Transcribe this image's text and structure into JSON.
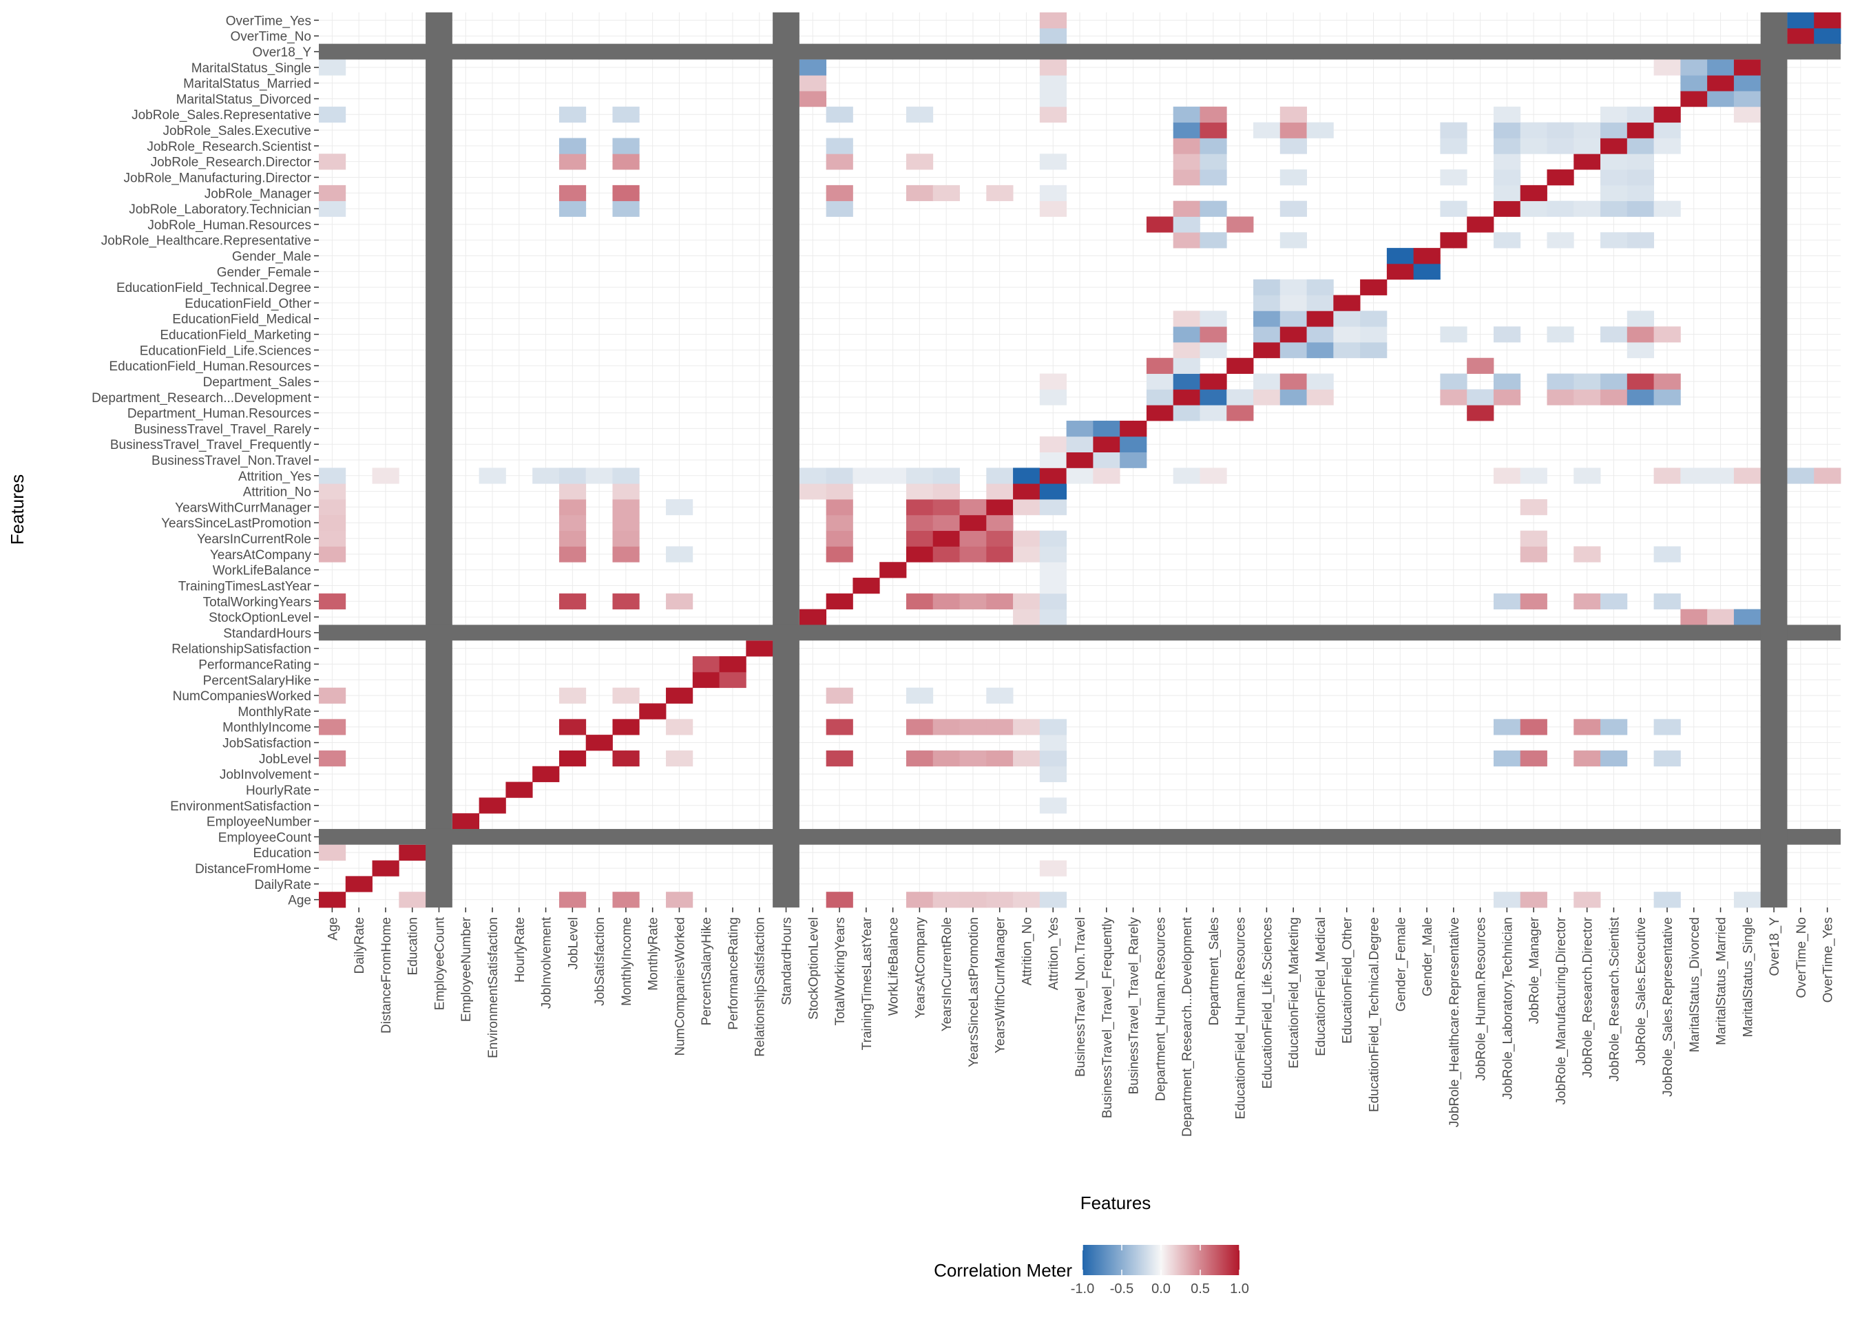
{
  "chart_data": {
    "type": "heatmap",
    "title": "",
    "xlabel": "Features",
    "ylabel": "Features",
    "legend": {
      "title": "Correlation Meter",
      "position": "bottom",
      "range": [
        -1,
        1
      ],
      "ticks": [
        "-1.0",
        "-0.5",
        "0.0",
        "0.5",
        "1.0"
      ],
      "colors": {
        "low": "#2166ac",
        "mid": "#f7f7f7",
        "high": "#b2182b"
      }
    },
    "na_color": "#6b6b6b",
    "grid": true,
    "features": [
      "Age",
      "DailyRate",
      "DistanceFromHome",
      "Education",
      "EmployeeCount",
      "EmployeeNumber",
      "EnvironmentSatisfaction",
      "HourlyRate",
      "JobInvolvement",
      "JobLevel",
      "JobSatisfaction",
      "MonthlyIncome",
      "MonthlyRate",
      "NumCompaniesWorked",
      "PercentSalaryHike",
      "PerformanceRating",
      "RelationshipSatisfaction",
      "StandardHours",
      "StockOptionLevel",
      "TotalWorkingYears",
      "TrainingTimesLastYear",
      "WorkLifeBalance",
      "YearsAtCompany",
      "YearsInCurrentRole",
      "YearsSinceLastPromotion",
      "YearsWithCurrManager",
      "Attrition_No",
      "Attrition_Yes",
      "BusinessTravel_Non.Travel",
      "BusinessTravel_Travel_Frequently",
      "BusinessTravel_Travel_Rarely",
      "Department_Human.Resources",
      "Department_Research...Development",
      "Department_Sales",
      "EducationField_Human.Resources",
      "EducationField_Life.Sciences",
      "EducationField_Marketing",
      "EducationField_Medical",
      "EducationField_Other",
      "EducationField_Technical.Degree",
      "Gender_Female",
      "Gender_Male",
      "JobRole_Healthcare.Representative",
      "JobRole_Human.Resources",
      "JobRole_Laboratory.Technician",
      "JobRole_Manager",
      "JobRole_Manufacturing.Director",
      "JobRole_Research.Director",
      "JobRole_Research.Scientist",
      "JobRole_Sales.Executive",
      "JobRole_Sales.Representative",
      "MaritalStatus_Divorced",
      "MaritalStatus_Married",
      "MaritalStatus_Single",
      "Over18_Y",
      "OverTime_No",
      "OverTime_Yes"
    ],
    "constant_features": [
      "EmployeeCount",
      "StandardHours",
      "Over18_Y"
    ],
    "correlations": [
      [
        "Age",
        "TotalWorkingYears",
        0.68
      ],
      [
        "Age",
        "JobLevel",
        0.51
      ],
      [
        "Age",
        "MonthlyIncome",
        0.5
      ],
      [
        "Age",
        "NumCompaniesWorked",
        0.3
      ],
      [
        "Age",
        "YearsAtCompany",
        0.31
      ],
      [
        "Age",
        "YearsInCurrentRole",
        0.21
      ],
      [
        "Age",
        "YearsSinceLastPromotion",
        0.22
      ],
      [
        "Age",
        "YearsWithCurrManager",
        0.2
      ],
      [
        "Age",
        "Education",
        0.21
      ],
      [
        "Age",
        "Attrition_No",
        0.16
      ],
      [
        "Age",
        "Attrition_Yes",
        -0.16
      ],
      [
        "Age",
        "MaritalStatus_Single",
        -0.12
      ],
      [
        "Age",
        "JobRole_Manager",
        0.3
      ],
      [
        "Age",
        "JobRole_Research.Director",
        0.2
      ],
      [
        "Age",
        "JobRole_Sales.Representative",
        -0.18
      ],
      [
        "Age",
        "JobRole_Laboratory.Technician",
        -0.14
      ],
      [
        "JobLevel",
        "MonthlyIncome",
        0.95
      ],
      [
        "JobLevel",
        "TotalWorkingYears",
        0.78
      ],
      [
        "MonthlyIncome",
        "TotalWorkingYears",
        0.77
      ],
      [
        "JobLevel",
        "YearsAtCompany",
        0.53
      ],
      [
        "MonthlyIncome",
        "YearsAtCompany",
        0.51
      ],
      [
        "JobLevel",
        "YearsInCurrentRole",
        0.39
      ],
      [
        "MonthlyIncome",
        "YearsInCurrentRole",
        0.36
      ],
      [
        "JobLevel",
        "YearsSinceLastPromotion",
        0.35
      ],
      [
        "MonthlyIncome",
        "YearsSinceLastPromotion",
        0.34
      ],
      [
        "JobLevel",
        "YearsWithCurrManager",
        0.38
      ],
      [
        "MonthlyIncome",
        "YearsWithCurrManager",
        0.34
      ],
      [
        "JobLevel",
        "JobRole_Manager",
        0.56
      ],
      [
        "MonthlyIncome",
        "JobRole_Manager",
        0.61
      ],
      [
        "JobLevel",
        "JobRole_Research.Director",
        0.39
      ],
      [
        "MonthlyIncome",
        "JobRole_Research.Director",
        0.44
      ],
      [
        "JobLevel",
        "JobRole_Research.Scientist",
        -0.37
      ],
      [
        "MonthlyIncome",
        "JobRole_Research.Scientist",
        -0.33
      ],
      [
        "JobLevel",
        "JobRole_Laboratory.Technician",
        -0.34
      ],
      [
        "MonthlyIncome",
        "JobRole_Laboratory.Technician",
        -0.32
      ],
      [
        "JobLevel",
        "JobRole_Sales.Representative",
        -0.2
      ],
      [
        "MonthlyIncome",
        "JobRole_Sales.Representative",
        -0.2
      ],
      [
        "JobLevel",
        "Attrition_No",
        0.17
      ],
      [
        "JobLevel",
        "Attrition_Yes",
        -0.17
      ],
      [
        "MonthlyIncome",
        "Attrition_No",
        0.16
      ],
      [
        "MonthlyIncome",
        "Attrition_Yes",
        -0.16
      ],
      [
        "JobLevel",
        "NumCompaniesWorked",
        0.14
      ],
      [
        "MonthlyIncome",
        "NumCompaniesWorked",
        0.15
      ],
      [
        "PercentSalaryHike",
        "PerformanceRating",
        0.77
      ],
      [
        "TotalWorkingYears",
        "YearsAtCompany",
        0.63
      ],
      [
        "TotalWorkingYears",
        "YearsInCurrentRole",
        0.46
      ],
      [
        "TotalWorkingYears",
        "YearsSinceLastPromotion",
        0.4
      ],
      [
        "TotalWorkingYears",
        "YearsWithCurrManager",
        0.46
      ],
      [
        "TotalWorkingYears",
        "NumCompaniesWorked",
        0.24
      ],
      [
        "TotalWorkingYears",
        "Attrition_No",
        0.17
      ],
      [
        "TotalWorkingYears",
        "Attrition_Yes",
        -0.17
      ],
      [
        "TotalWorkingYears",
        "JobRole_Manager",
        0.46
      ],
      [
        "TotalWorkingYears",
        "JobRole_Research.Director",
        0.33
      ],
      [
        "TotalWorkingYears",
        "JobRole_Laboratory.Technician",
        -0.24
      ],
      [
        "TotalWorkingYears",
        "JobRole_Research.Scientist",
        -0.22
      ],
      [
        "TotalWorkingYears",
        "JobRole_Sales.Representative",
        -0.2
      ],
      [
        "YearsAtCompany",
        "YearsInCurrentRole",
        0.76
      ],
      [
        "YearsAtCompany",
        "YearsSinceLastPromotion",
        0.62
      ],
      [
        "YearsAtCompany",
        "YearsWithCurrManager",
        0.77
      ],
      [
        "YearsInCurrentRole",
        "YearsSinceLastPromotion",
        0.55
      ],
      [
        "YearsInCurrentRole",
        "YearsWithCurrManager",
        0.71
      ],
      [
        "YearsSinceLastPromotion",
        "YearsWithCurrManager",
        0.51
      ],
      [
        "YearsAtCompany",
        "Attrition_No",
        0.13
      ],
      [
        "YearsAtCompany",
        "Attrition_Yes",
        -0.13
      ],
      [
        "YearsInCurrentRole",
        "Attrition_No",
        0.16
      ],
      [
        "YearsInCurrentRole",
        "Attrition_Yes",
        -0.16
      ],
      [
        "YearsWithCurrManager",
        "Attrition_No",
        0.16
      ],
      [
        "YearsWithCurrManager",
        "Attrition_Yes",
        -0.16
      ],
      [
        "YearsAtCompany",
        "JobRole_Manager",
        0.27
      ],
      [
        "YearsAtCompany",
        "JobRole_Research.Director",
        0.18
      ],
      [
        "YearsAtCompany",
        "JobRole_Sales.Representative",
        -0.14
      ],
      [
        "YearsInCurrentRole",
        "JobRole_Manager",
        0.17
      ],
      [
        "YearsWithCurrManager",
        "JobRole_Manager",
        0.16
      ],
      [
        "YearsAtCompany",
        "NumCompaniesWorked",
        -0.12
      ],
      [
        "YearsWithCurrManager",
        "NumCompaniesWorked",
        -0.11
      ],
      [
        "StockOptionLevel",
        "MaritalStatus_Single",
        -0.64
      ],
      [
        "StockOptionLevel",
        "MaritalStatus_Divorced",
        0.43
      ],
      [
        "StockOptionLevel",
        "MaritalStatus_Married",
        0.2
      ],
      [
        "StockOptionLevel",
        "Attrition_No",
        0.14
      ],
      [
        "StockOptionLevel",
        "Attrition_Yes",
        -0.14
      ],
      [
        "Attrition_No",
        "Attrition_Yes",
        -1
      ],
      [
        "Attrition_Yes",
        "OverTime_Yes",
        0.25
      ],
      [
        "Attrition_Yes",
        "OverTime_No",
        -0.25
      ],
      [
        "Attrition_Yes",
        "MaritalStatus_Single",
        0.18
      ],
      [
        "Attrition_Yes",
        "MaritalStatus_Married",
        -0.09
      ],
      [
        "Attrition_Yes",
        "MaritalStatus_Divorced",
        -0.09
      ],
      [
        "Attrition_Yes",
        "BusinessTravel_Travel_Frequently",
        0.12
      ],
      [
        "Attrition_Yes",
        "BusinessTravel_Non.Travel",
        -0.07
      ],
      [
        "Attrition_Yes",
        "JobInvolvement",
        -0.13
      ],
      [
        "Attrition_Yes",
        "EnvironmentSatisfaction",
        -0.1
      ],
      [
        "Attrition_Yes",
        "JobSatisfaction",
        -0.1
      ],
      [
        "Attrition_Yes",
        "JobRole_Sales.Representative",
        0.16
      ],
      [
        "Attrition_Yes",
        "JobRole_Laboratory.Technician",
        0.1
      ],
      [
        "Attrition_Yes",
        "JobRole_Research.Director",
        -0.09
      ],
      [
        "Attrition_Yes",
        "JobRole_Manager",
        -0.08
      ],
      [
        "Attrition_Yes",
        "Department_Research...Development",
        -0.09
      ],
      [
        "Attrition_Yes",
        "Department_Sales",
        0.08
      ],
      [
        "Attrition_Yes",
        "DistanceFromHome",
        0.08
      ],
      [
        "Attrition_Yes",
        "WorkLifeBalance",
        -0.06
      ],
      [
        "Attrition_Yes",
        "TrainingTimesLastYear",
        -0.06
      ],
      [
        "BusinessTravel_Non.Travel",
        "BusinessTravel_Travel_Rarely",
        -0.53
      ],
      [
        "BusinessTravel_Travel_Frequently",
        "BusinessTravel_Travel_Rarely",
        -0.76
      ],
      [
        "BusinessTravel_Non.Travel",
        "BusinessTravel_Travel_Frequently",
        -0.17
      ],
      [
        "Department_Human.Resources",
        "Department_Research...Development",
        -0.21
      ],
      [
        "Department_Human.Resources",
        "Department_Sales",
        -0.11
      ],
      [
        "Department_Research...Development",
        "Department_Sales",
        -0.91
      ],
      [
        "Department_Human.Resources",
        "EducationField_Human.Resources",
        0.63
      ],
      [
        "Department_Human.Resources",
        "JobRole_Human.Resources",
        0.9
      ],
      [
        "Department_Research...Development",
        "JobRole_Sales.Executive",
        -0.71
      ],
      [
        "Department_Sales",
        "JobRole_Sales.Executive",
        0.8
      ],
      [
        "Department_Research...Development",
        "JobRole_Sales.Representative",
        -0.4
      ],
      [
        "Department_Sales",
        "JobRole_Sales.Representative",
        0.46
      ],
      [
        "Department_Research...Development",
        "JobRole_Research.Scientist",
        0.36
      ],
      [
        "Department_Sales",
        "JobRole_Research.Scientist",
        -0.33
      ],
      [
        "Department_Research...Development",
        "JobRole_Laboratory.Technician",
        0.35
      ],
      [
        "Department_Sales",
        "JobRole_Laboratory.Technician",
        -0.33
      ],
      [
        "Department_Research...Development",
        "JobRole_Healthcare.Representative",
        0.29
      ],
      [
        "Department_Sales",
        "JobRole_Healthcare.Representative",
        -0.25
      ],
      [
        "Department_Research...Development",
        "JobRole_Manufacturing.Director",
        0.3
      ],
      [
        "Department_Sales",
        "JobRole_Manufacturing.Director",
        -0.26
      ],
      [
        "Department_Research...Development",
        "JobRole_Research.Director",
        0.25
      ],
      [
        "Department_Sales",
        "JobRole_Research.Director",
        -0.21
      ],
      [
        "Department_Sales",
        "JobRole_Manager",
        0.02
      ],
      [
        "Department_Research...Development",
        "JobRole_Human.Resources",
        -0.19
      ],
      [
        "Department_Research...Development",
        "EducationField_Marketing",
        -0.49
      ],
      [
        "Department_Sales",
        "EducationField_Marketing",
        0.56
      ],
      [
        "Department_Research...Development",
        "EducationField_Life.Sciences",
        0.14
      ],
      [
        "Department_Sales",
        "EducationField_Life.Sciences",
        -0.11
      ],
      [
        "Department_Research...Development",
        "EducationField_Medical",
        0.15
      ],
      [
        "Department_Sales",
        "EducationField_Medical",
        -0.11
      ],
      [
        "Department_Research...Development",
        "EducationField_Human.Resources",
        -0.13
      ],
      [
        "EducationField_Human.Resources",
        "JobRole_Human.Resources",
        0.53
      ],
      [
        "EducationField_Life.Sciences",
        "EducationField_Medical",
        -0.55
      ],
      [
        "EducationField_Life.Sciences",
        "EducationField_Marketing",
        -0.31
      ],
      [
        "EducationField_Life.Sciences",
        "EducationField_Other",
        -0.2
      ],
      [
        "EducationField_Life.Sciences",
        "EducationField_Technical.Degree",
        -0.25
      ],
      [
        "EducationField_Marketing",
        "EducationField_Medical",
        -0.26
      ],
      [
        "EducationField_Marketing",
        "EducationField_Other",
        -0.09
      ],
      [
        "EducationField_Marketing",
        "EducationField_Technical.Degree",
        -0.11
      ],
      [
        "EducationField_Medical",
        "EducationField_Other",
        -0.16
      ],
      [
        "EducationField_Medical",
        "EducationField_Technical.Degree",
        -0.2
      ],
      [
        "EducationField_Marketing",
        "JobRole_Sales.Executive",
        0.45
      ],
      [
        "EducationField_Marketing",
        "JobRole_Sales.Representative",
        0.21
      ],
      [
        "EducationField_Marketing",
        "JobRole_Laboratory.Technician",
        -0.17
      ],
      [
        "EducationField_Marketing",
        "JobRole_Research.Scientist",
        -0.17
      ],
      [
        "EducationField_Marketing",
        "JobRole_Healthcare.Representative",
        -0.12
      ],
      [
        "EducationField_Marketing",
        "JobRole_Manufacturing.Director",
        -0.12
      ],
      [
        "EducationField_Life.Sciences",
        "JobRole_Sales.Executive",
        -0.1
      ],
      [
        "EducationField_Medical",
        "JobRole_Sales.Executive",
        -0.12
      ],
      [
        "Gender_Female",
        "Gender_Male",
        -1
      ],
      [
        "JobRole_Sales.Executive",
        "JobRole_Research.Scientist",
        -0.29
      ],
      [
        "JobRole_Sales.Executive",
        "JobRole_Laboratory.Technician",
        -0.28
      ],
      [
        "JobRole_Sales.Executive",
        "JobRole_Healthcare.Representative",
        -0.17
      ],
      [
        "JobRole_Sales.Executive",
        "JobRole_Manufacturing.Director",
        -0.17
      ],
      [
        "JobRole_Sales.Executive",
        "JobRole_Manager",
        -0.14
      ],
      [
        "JobRole_Sales.Executive",
        "JobRole_Research.Director",
        -0.13
      ],
      [
        "JobRole_Sales.Executive",
        "JobRole_Sales.Representative",
        -0.14
      ],
      [
        "JobRole_Research.Scientist",
        "JobRole_Laboratory.Technician",
        -0.23
      ],
      [
        "JobRole_Research.Scientist",
        "JobRole_Healthcare.Representative",
        -0.14
      ],
      [
        "JobRole_Research.Scientist",
        "JobRole_Manufacturing.Director",
        -0.15
      ],
      [
        "JobRole_Research.Scientist",
        "JobRole_Manager",
        -0.12
      ],
      [
        "JobRole_Research.Scientist",
        "JobRole_Research.Director",
        -0.12
      ],
      [
        "JobRole_Research.Scientist",
        "JobRole_Sales.Representative",
        -0.1
      ],
      [
        "JobRole_Laboratory.Technician",
        "JobRole_Healthcare.Representative",
        -0.14
      ],
      [
        "JobRole_Laboratory.Technician",
        "JobRole_Manufacturing.Director",
        -0.14
      ],
      [
        "JobRole_Laboratory.Technician",
        "JobRole_Manager",
        -0.12
      ],
      [
        "JobRole_Laboratory.Technician",
        "JobRole_Research.Director",
        -0.11
      ],
      [
        "JobRole_Laboratory.Technician",
        "JobRole_Sales.Representative",
        -0.1
      ],
      [
        "JobRole_Healthcare.Representative",
        "JobRole_Manufacturing.Director",
        -0.1
      ],
      [
        "JobRole_Sales.Representative",
        "MaritalStatus_Single",
        0.1
      ],
      [
        "MaritalStatus_Divorced",
        "MaritalStatus_Married",
        -0.49
      ],
      [
        "MaritalStatus_Divorced",
        "MaritalStatus_Single",
        -0.37
      ],
      [
        "MaritalStatus_Married",
        "MaritalStatus_Single",
        -0.63
      ],
      [
        "OverTime_No",
        "OverTime_Yes",
        -1
      ]
    ]
  }
}
